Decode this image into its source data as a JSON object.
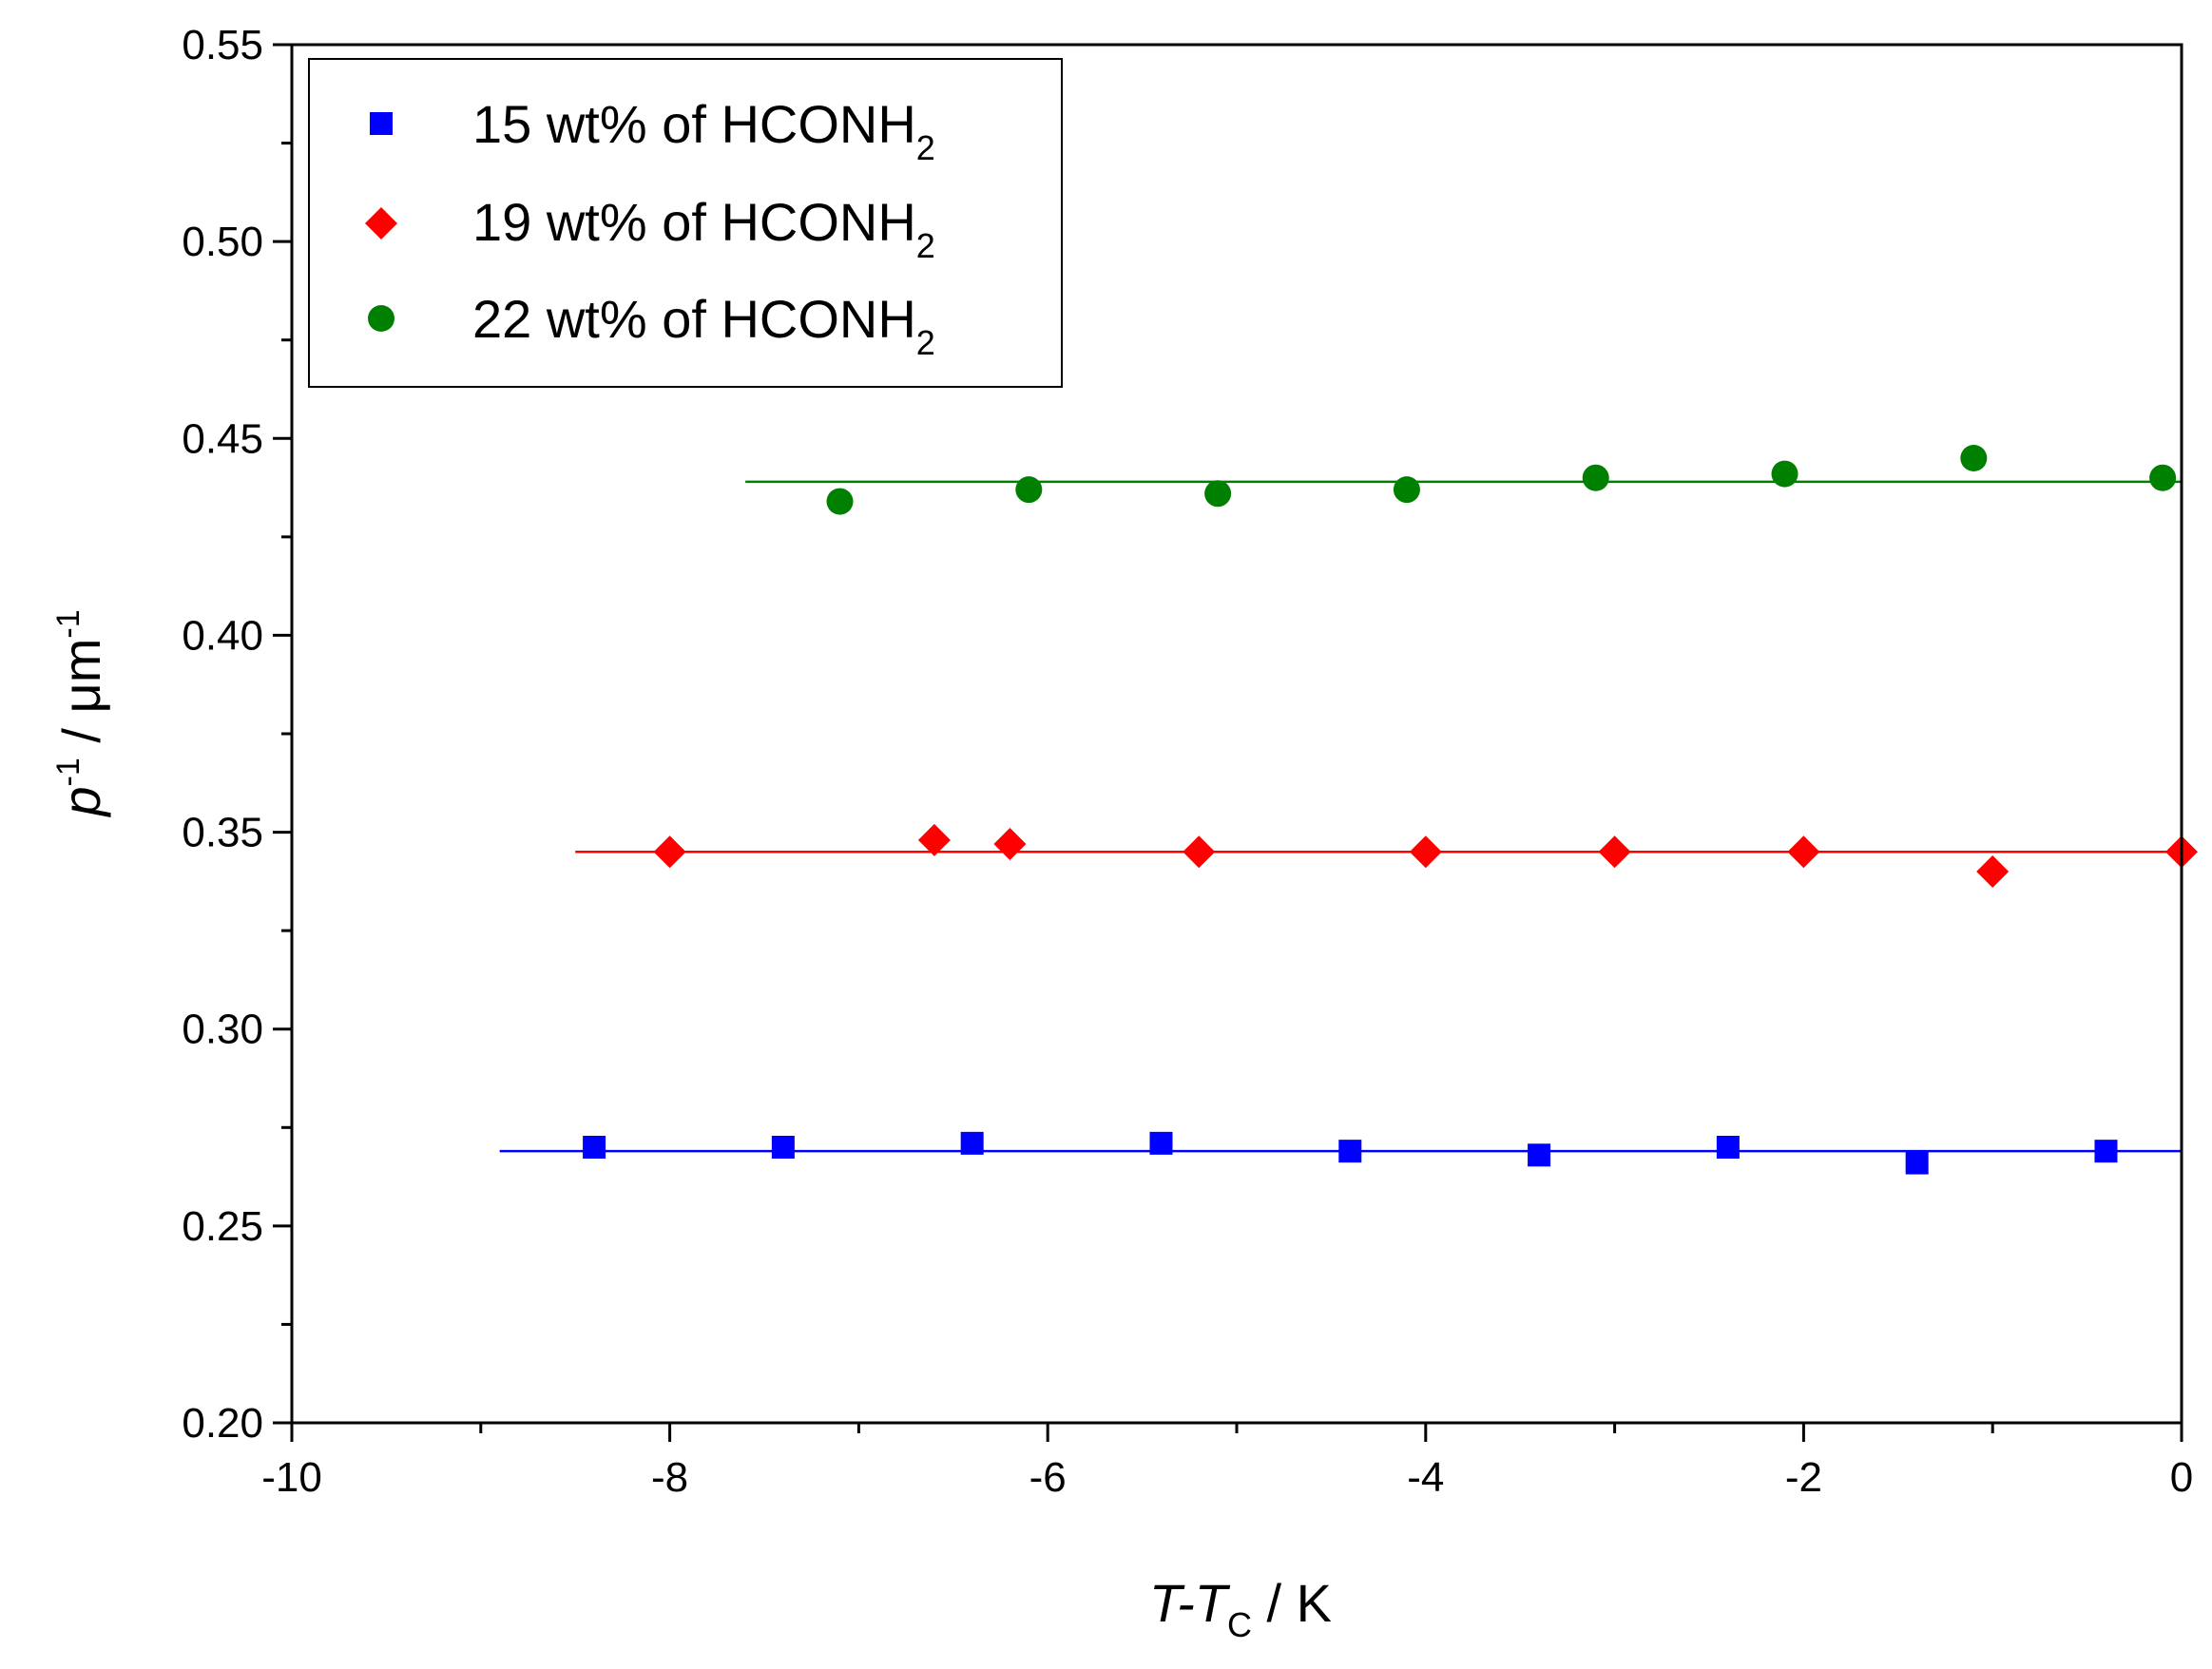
{
  "chart_data": {
    "type": "scatter",
    "title": "",
    "xlabel": {
      "main": "T-T",
      "sub": "C",
      "unit": " / K"
    },
    "ylabel": {
      "main": "p",
      "sup1": "-1",
      "mid": " / μm",
      "sup2": "-1"
    },
    "xlim": [
      -10,
      0
    ],
    "ylim": [
      0.2,
      0.55
    ],
    "xticks": [
      -10,
      -8,
      -6,
      -4,
      -2,
      0
    ],
    "xtick_labels": [
      "-10",
      "-8",
      "-6",
      "-4",
      "-2",
      "0"
    ],
    "yticks": [
      0.2,
      0.25,
      0.3,
      0.35,
      0.4,
      0.45,
      0.5,
      0.55
    ],
    "ytick_labels": [
      "0.20",
      "0.25",
      "0.30",
      "0.35",
      "0.40",
      "0.45",
      "0.50",
      "0.55"
    ],
    "grid": false,
    "legend_position": "top-left",
    "series": [
      {
        "name": "15 wt% of HCONH",
        "name_sub": "2",
        "marker": "square",
        "color": "#0000ff",
        "x": [
          -8.4,
          -7.4,
          -6.4,
          -5.4,
          -4.4,
          -3.4,
          -2.4,
          -1.4,
          -0.4
        ],
        "y": [
          0.27,
          0.27,
          0.271,
          0.271,
          0.269,
          0.268,
          0.27,
          0.266,
          0.269
        ],
        "fit": {
          "x": [
            -8.9,
            0
          ],
          "y": 0.269
        }
      },
      {
        "name": "19 wt% of HCONH",
        "name_sub": "2",
        "marker": "diamond",
        "color": "#ff0000",
        "x": [
          -8.0,
          -6.6,
          -6.2,
          -5.2,
          -4.0,
          -3.0,
          -2.0,
          -1.0,
          0.0
        ],
        "y": [
          0.345,
          0.348,
          0.347,
          0.345,
          0.345,
          0.345,
          0.345,
          0.34,
          0.345
        ],
        "fit": {
          "x": [
            -8.5,
            0
          ],
          "y": 0.345
        }
      },
      {
        "name": "22 wt% of HCONH",
        "name_sub": "2",
        "marker": "circle",
        "color": "#008000",
        "x": [
          -7.1,
          -6.1,
          -5.1,
          -4.1,
          -3.1,
          -2.1,
          -1.1,
          -0.1
        ],
        "y": [
          0.434,
          0.437,
          0.436,
          0.437,
          0.44,
          0.441,
          0.445,
          0.44
        ],
        "fit": {
          "x": [
            -7.6,
            0
          ],
          "y": 0.439
        }
      }
    ]
  }
}
